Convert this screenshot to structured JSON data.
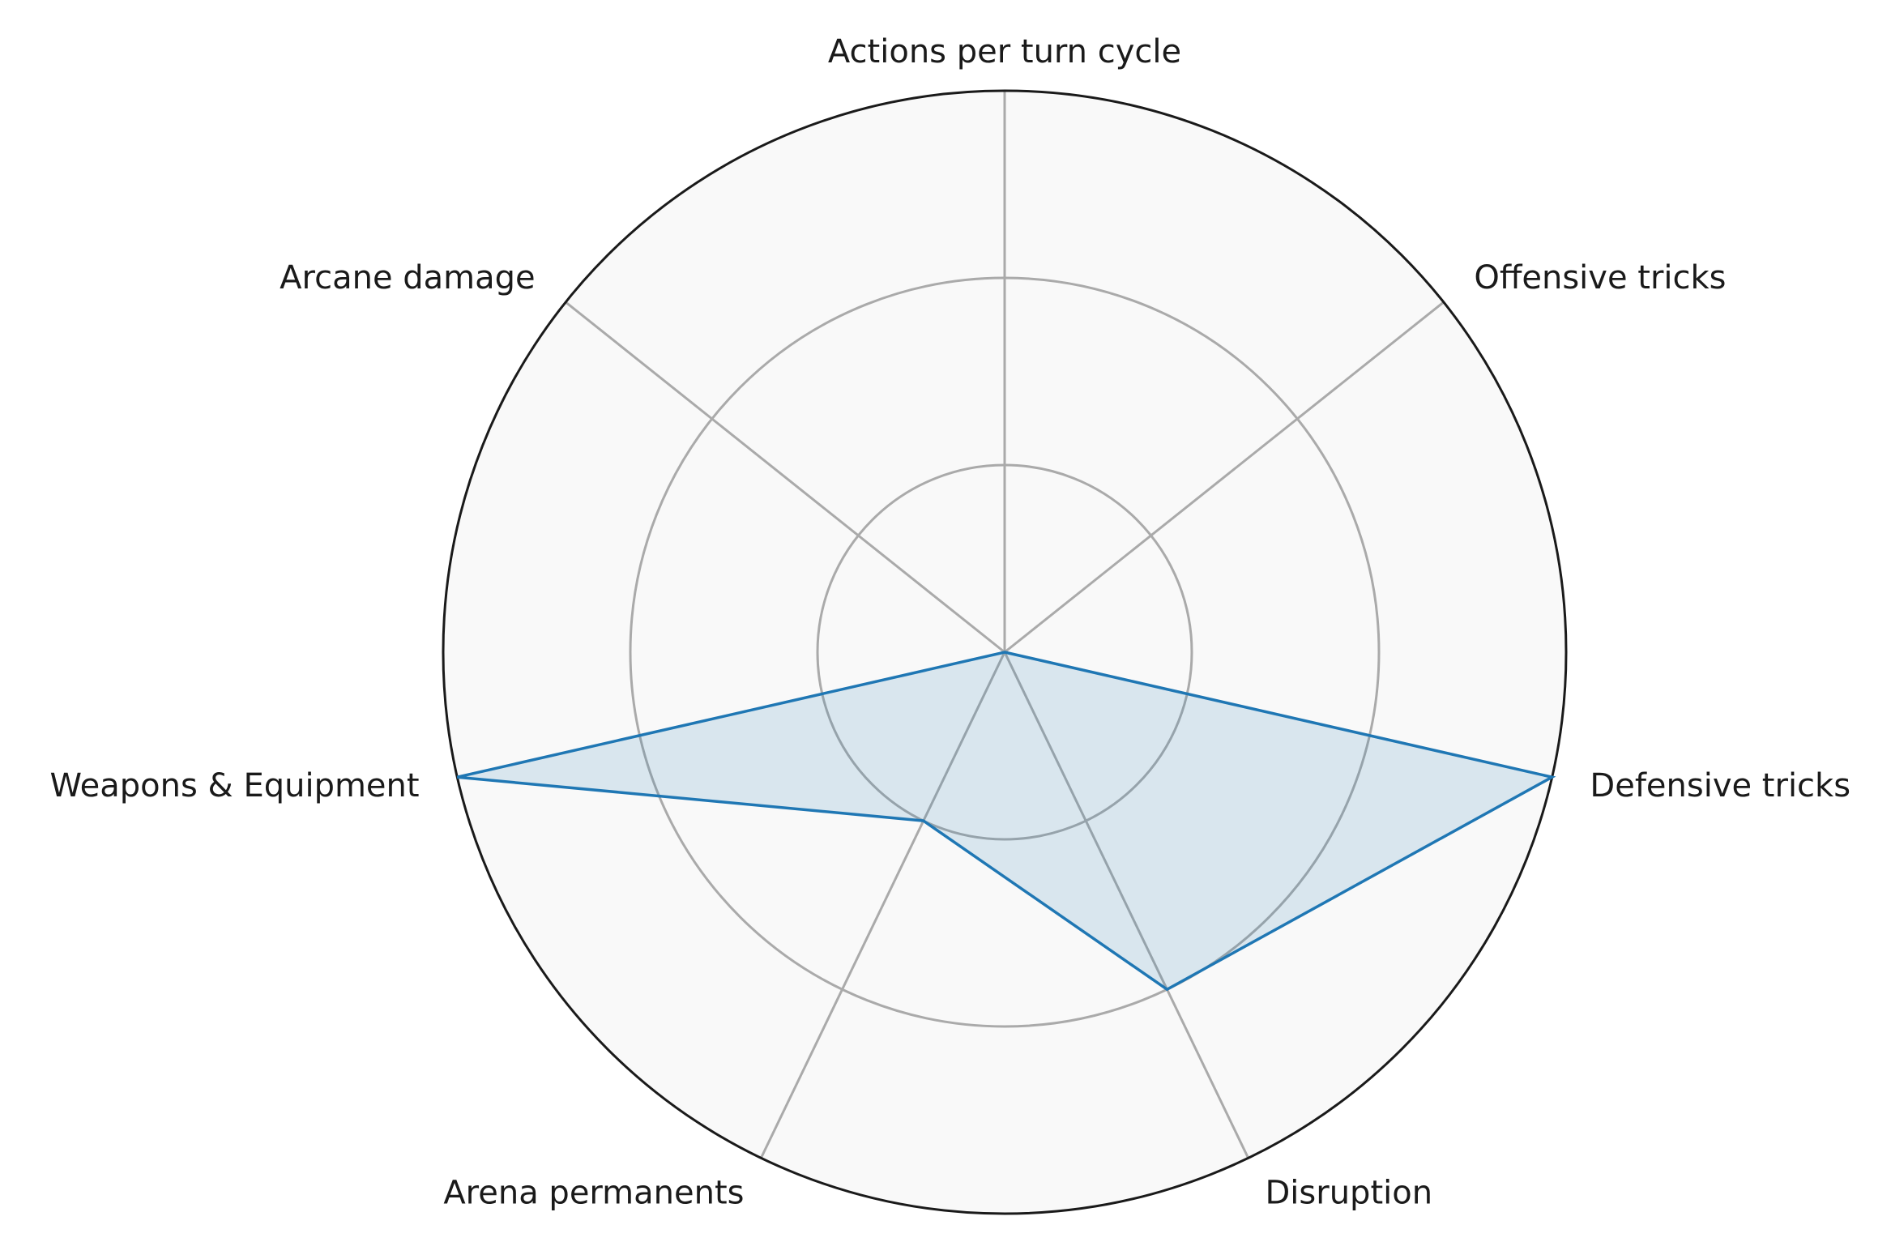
{
  "chart_data": {
    "type": "radar",
    "axes": [
      "Actions per turn cycle",
      "Offensive tricks",
      "Defensive tricks",
      "Disruption",
      "Arena permanents",
      "Weapons & Equipment",
      "Arcane damage"
    ],
    "series": [
      {
        "values": [
          0,
          0,
          3,
          2,
          1,
          3,
          0
        ]
      }
    ],
    "rlim": [
      0,
      3
    ],
    "rings": [
      1,
      2,
      3
    ],
    "grid": true,
    "legend": "none",
    "colors": {
      "series_line": "#1f77b4",
      "series_fill": "#1f77b4",
      "panel_background": "#f9f9f9",
      "grid": "#aaaaaa",
      "outer_ring": "#1a1a1a"
    }
  }
}
